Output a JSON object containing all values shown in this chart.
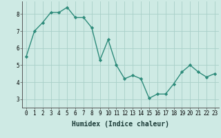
{
  "x": [
    0,
    1,
    2,
    3,
    4,
    5,
    6,
    7,
    8,
    9,
    10,
    11,
    12,
    13,
    14,
    15,
    16,
    17,
    18,
    19,
    20,
    21,
    22,
    23
  ],
  "y": [
    5.5,
    7.0,
    7.5,
    8.1,
    8.1,
    8.4,
    7.8,
    7.8,
    7.2,
    5.3,
    6.5,
    5.0,
    4.2,
    4.4,
    4.2,
    3.05,
    3.3,
    3.3,
    3.9,
    4.6,
    5.0,
    4.6,
    4.3,
    4.5
  ],
  "line_color": "#2d8b7a",
  "marker_color": "#2d8b7a",
  "bg_color": "#ceeae4",
  "grid_color": "#a8cfc8",
  "xlabel": "Humidex (Indice chaleur)",
  "xlim": [
    -0.5,
    23.5
  ],
  "ylim": [
    2.5,
    8.75
  ],
  "yticks": [
    3,
    4,
    5,
    6,
    7,
    8
  ],
  "xticks": [
    0,
    1,
    2,
    3,
    4,
    5,
    6,
    7,
    8,
    9,
    10,
    11,
    12,
    13,
    14,
    15,
    16,
    17,
    18,
    19,
    20,
    21,
    22,
    23
  ],
  "tick_fontsize": 5.5,
  "xlabel_fontsize": 7.0
}
